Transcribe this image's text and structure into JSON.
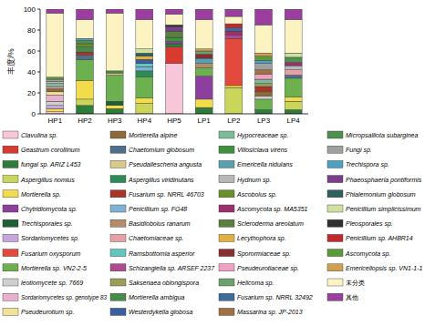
{
  "chart_data": {
    "type": "bar",
    "stacked": true,
    "y_label": "丰度/%",
    "legend": "bottom",
    "categories": [
      "HP1",
      "HP2",
      "HP3",
      "HP4",
      "HP5",
      "LP1",
      "LP2",
      "LP3",
      "LP4"
    ],
    "ylim": [
      0,
      100
    ],
    "yticks": [
      0,
      20,
      40,
      60,
      80,
      100
    ],
    "series": [
      {
        "name": "Clavulina sp.",
        "color": "#f7c6d9",
        "values": [
          2,
          0,
          0,
          0,
          48,
          0,
          0,
          0,
          0
        ]
      },
      {
        "name": "Geastrum corollinum",
        "color": "#d73a31",
        "values": [
          0,
          0,
          0,
          0,
          16,
          0,
          0,
          0,
          0
        ]
      },
      {
        "name": "fungal sp. ARIZ L453",
        "color": "#2f7d3a",
        "values": [
          0,
          8,
          5,
          0,
          3,
          6,
          0,
          4,
          4
        ]
      },
      {
        "name": "Aspergillus nomius",
        "color": "#c9d65a",
        "values": [
          0,
          6,
          0,
          10,
          0,
          0,
          25,
          0,
          8
        ]
      },
      {
        "name": "Mortierella sp.",
        "color": "#f2dc4c",
        "values": [
          3,
          18,
          3,
          5,
          0,
          8,
          2,
          0,
          4
        ]
      },
      {
        "name": "Chytridiomycota sp.",
        "color": "#8d3fa0",
        "values": [
          0,
          0,
          0,
          0,
          2,
          22,
          0,
          0,
          0
        ]
      },
      {
        "name": "Trechisporales sp.",
        "color": "#1e5e34",
        "values": [
          0,
          0,
          4,
          0,
          0,
          0,
          0,
          0,
          0
        ]
      },
      {
        "name": "Sordariomycetes sp.",
        "color": "#c6a6de",
        "values": [
          3,
          0,
          0,
          0,
          0,
          0,
          0,
          0,
          0
        ]
      },
      {
        "name": "Fusarium oxysporum",
        "color": "#e4493d",
        "values": [
          0,
          0,
          0,
          0,
          0,
          0,
          45,
          0,
          0
        ]
      },
      {
        "name": "Mortierella sp. VN2-2-5",
        "color": "#6db04f",
        "values": [
          0,
          20,
          25,
          20,
          0,
          8,
          0,
          10,
          18
        ]
      },
      {
        "name": "leotiomycete sp. 7669",
        "color": "#cfcfcf",
        "values": [
          4,
          0,
          0,
          0,
          0,
          0,
          0,
          3,
          0
        ]
      },
      {
        "name": "Sordariomycetes sp. genotype 83",
        "color": "#eab0cf",
        "values": [
          6,
          0,
          0,
          0,
          0,
          0,
          0,
          0,
          0
        ]
      },
      {
        "name": "Pseudeurotium sp.",
        "color": "#efe39a",
        "values": [
          3,
          0,
          0,
          0,
          0,
          0,
          0,
          0,
          0
        ]
      },
      {
        "name": "Mortierella alpine",
        "color": "#8c6a3c",
        "values": [
          3,
          0,
          0,
          0,
          0,
          0,
          0,
          4,
          0
        ]
      },
      {
        "name": "Chaetomium globosum",
        "color": "#4f6e8a",
        "values": [
          0,
          4,
          0,
          0,
          0,
          0,
          0,
          0,
          3
        ]
      },
      {
        "name": "Pseudallescheria angusta",
        "color": "#d9c98b",
        "values": [
          0,
          0,
          2,
          0,
          0,
          0,
          0,
          0,
          0
        ]
      },
      {
        "name": "Aspergillus viridinutans",
        "color": "#2e8b57",
        "values": [
          0,
          0,
          0,
          6,
          0,
          0,
          0,
          0,
          0
        ]
      },
      {
        "name": "Fusarium sp. NRRL 46703",
        "color": "#a9342a",
        "values": [
          0,
          3,
          0,
          0,
          0,
          0,
          0,
          5,
          0
        ]
      },
      {
        "name": "Penicillium sp. FG48",
        "color": "#7fb3d5",
        "values": [
          0,
          0,
          0,
          4,
          0,
          0,
          0,
          0,
          0
        ]
      },
      {
        "name": "Basidiobolus ranarum",
        "color": "#b58c6a",
        "values": [
          0,
          0,
          0,
          0,
          0,
          4,
          0,
          0,
          0
        ]
      },
      {
        "name": "Chaetomiaceae sp.",
        "color": "#e8a0a8",
        "values": [
          2,
          0,
          0,
          0,
          0,
          0,
          0,
          0,
          5
        ]
      },
      {
        "name": "Ramsbottomia asperior",
        "color": "#5fc6c0",
        "values": [
          0,
          0,
          0,
          3,
          0,
          0,
          0,
          0,
          0
        ]
      },
      {
        "name": "Schizangiella sp. ARSEF 2237",
        "color": "#b04a8e",
        "values": [
          0,
          0,
          0,
          0,
          0,
          0,
          3,
          0,
          0
        ]
      },
      {
        "name": "Saksenaea oblongispora",
        "color": "#9c9c5a",
        "values": [
          0,
          0,
          0,
          0,
          0,
          0,
          0,
          3,
          0
        ]
      },
      {
        "name": "Mortierella ambigua",
        "color": "#4a8a4a",
        "values": [
          0,
          5,
          2,
          0,
          0,
          0,
          0,
          0,
          0
        ]
      },
      {
        "name": "Westerdykella globosa",
        "color": "#3a5fa0",
        "values": [
          0,
          0,
          0,
          4,
          0,
          0,
          0,
          0,
          0
        ]
      },
      {
        "name": "Hypocreaceae sp.",
        "color": "#7dbb9a",
        "values": [
          3,
          0,
          0,
          0,
          0,
          0,
          0,
          4,
          0
        ]
      },
      {
        "name": "Villosiclava virens",
        "color": "#3f8f3f",
        "values": [
          0,
          0,
          0,
          0,
          4,
          0,
          0,
          0,
          0
        ]
      },
      {
        "name": "Emericella nidulans",
        "color": "#5aa0b0",
        "values": [
          0,
          0,
          0,
          0,
          0,
          5,
          0,
          0,
          0
        ]
      },
      {
        "name": "Hydnum sp.",
        "color": "#b8b8b8",
        "values": [
          2,
          0,
          0,
          0,
          0,
          0,
          0,
          0,
          4
        ]
      },
      {
        "name": "Ascobolus sp.",
        "color": "#6a8f2a",
        "values": [
          0,
          3,
          0,
          0,
          0,
          0,
          0,
          0,
          0
        ]
      },
      {
        "name": "Ascomycota sp. MA5351",
        "color": "#9c2f6c",
        "values": [
          0,
          0,
          0,
          0,
          0,
          0,
          4,
          0,
          3
        ]
      },
      {
        "name": "Scleroderma areolatum",
        "color": "#5a7f3f",
        "values": [
          0,
          0,
          0,
          0,
          6,
          0,
          0,
          0,
          0
        ]
      },
      {
        "name": "Lecythophora sp.",
        "color": "#e0b040",
        "values": [
          0,
          0,
          0,
          3,
          0,
          0,
          0,
          0,
          0
        ]
      },
      {
        "name": "Sporormiaceae sp.",
        "color": "#8a2f30",
        "values": [
          0,
          0,
          0,
          0,
          0,
          4,
          0,
          0,
          0
        ]
      },
      {
        "name": "Pseudeurotiaceae sp.",
        "color": "#f0a0c0",
        "values": [
          0,
          0,
          0,
          0,
          0,
          0,
          0,
          5,
          0
        ]
      },
      {
        "name": "Helicoma sp.",
        "color": "#6fa070",
        "values": [
          0,
          0,
          0,
          0,
          0,
          3,
          0,
          0,
          0
        ]
      },
      {
        "name": "Fusarium sp. NRRL 32492",
        "color": "#3c6c9c",
        "values": [
          0,
          0,
          0,
          0,
          0,
          0,
          3,
          0,
          0
        ]
      },
      {
        "name": "Massarina sp. JP-2013",
        "color": "#a07040",
        "values": [
          0,
          0,
          0,
          0,
          0,
          0,
          0,
          4,
          0
        ]
      },
      {
        "name": "Micropsalliota subarginea",
        "color": "#4f8f4f",
        "values": [
          0,
          3,
          0,
          0,
          0,
          0,
          0,
          0,
          5
        ]
      },
      {
        "name": "Fungi sp.",
        "color": "#9f9f9f",
        "values": [
          2,
          0,
          0,
          0,
          0,
          0,
          0,
          6,
          0
        ]
      },
      {
        "name": "Trechispora sp.",
        "color": "#4f9fbf",
        "values": [
          0,
          2,
          0,
          0,
          0,
          0,
          0,
          3,
          0
        ]
      },
      {
        "name": "Phaeosphaeria pontiformis",
        "color": "#7a3f8a",
        "values": [
          0,
          0,
          0,
          0,
          4,
          0,
          0,
          0,
          0
        ]
      },
      {
        "name": "Phialemonium globosum",
        "color": "#2f5f5f",
        "values": [
          0,
          0,
          0,
          3,
          0,
          0,
          0,
          0,
          0
        ]
      },
      {
        "name": "Penicillium simplicissimum",
        "color": "#d0e0a0",
        "values": [
          0,
          0,
          0,
          4,
          0,
          0,
          0,
          0,
          4
        ]
      },
      {
        "name": "Pleosporales sp.",
        "color": "#303030",
        "values": [
          0,
          0,
          0,
          0,
          2,
          0,
          0,
          0,
          0
        ]
      },
      {
        "name": "Penicillium sp. AHBR14",
        "color": "#c0282d",
        "values": [
          0,
          0,
          0,
          0,
          0,
          0,
          4,
          0,
          0
        ]
      },
      {
        "name": "Ascomycota sp.",
        "color": "#5a9a3a",
        "values": [
          2,
          0,
          0,
          0,
          0,
          0,
          0,
          4,
          0
        ]
      },
      {
        "name": "Emericellopsis sp. VN1-1-1",
        "color": "#cfa050",
        "values": [
          0,
          0,
          0,
          0,
          0,
          2,
          0,
          3,
          0
        ]
      },
      {
        "name": "未分类",
        "color": "#fbf3c2",
        "values": [
          61,
          18,
          55,
          28,
          10,
          28,
          7,
          27,
          32
        ]
      },
      {
        "name": "其他",
        "color": "#9b3f9e",
        "values": [
          4,
          10,
          4,
          10,
          5,
          10,
          7,
          15,
          10
        ]
      }
    ]
  }
}
